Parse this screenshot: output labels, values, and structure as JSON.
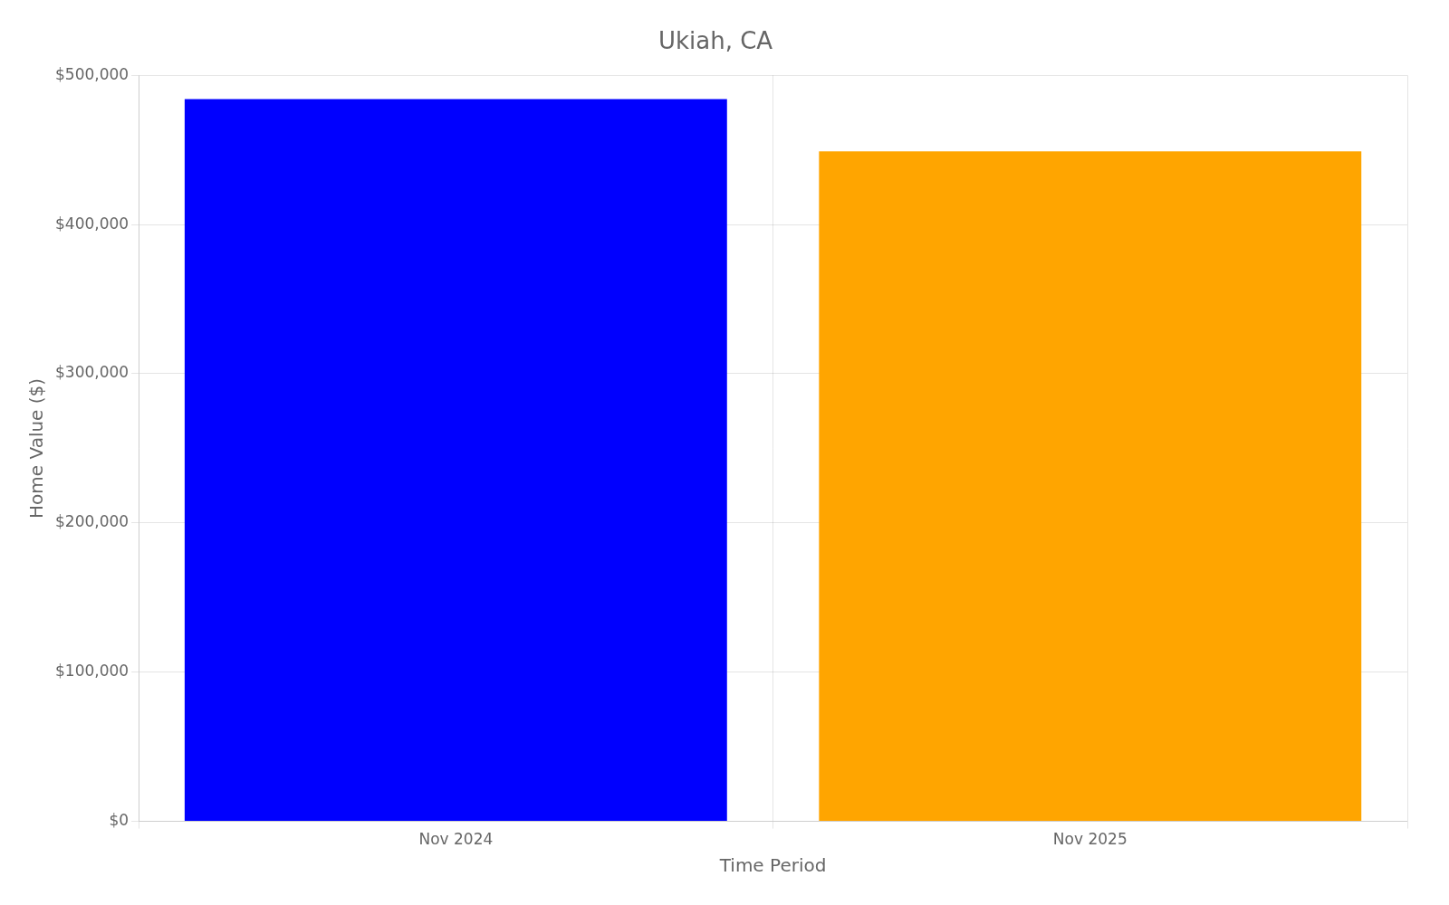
{
  "chart_data": {
    "type": "bar",
    "title": "Ukiah, CA",
    "xlabel": "Time Period",
    "ylabel": "Home Value ($)",
    "categories": [
      "Nov 2024",
      "Nov 2025"
    ],
    "values": [
      484000,
      449000
    ],
    "colors": [
      "#0000ff",
      "#ffa500"
    ],
    "ylim": [
      0,
      500000
    ],
    "yticks": [
      {
        "value": 0,
        "label": "$0"
      },
      {
        "value": 100000,
        "label": "$100,000"
      },
      {
        "value": 200000,
        "label": "$200,000"
      },
      {
        "value": 300000,
        "label": "$300,000"
      },
      {
        "value": 400000,
        "label": "$400,000"
      },
      {
        "value": 500000,
        "label": "$500,000"
      }
    ],
    "grid": true
  }
}
